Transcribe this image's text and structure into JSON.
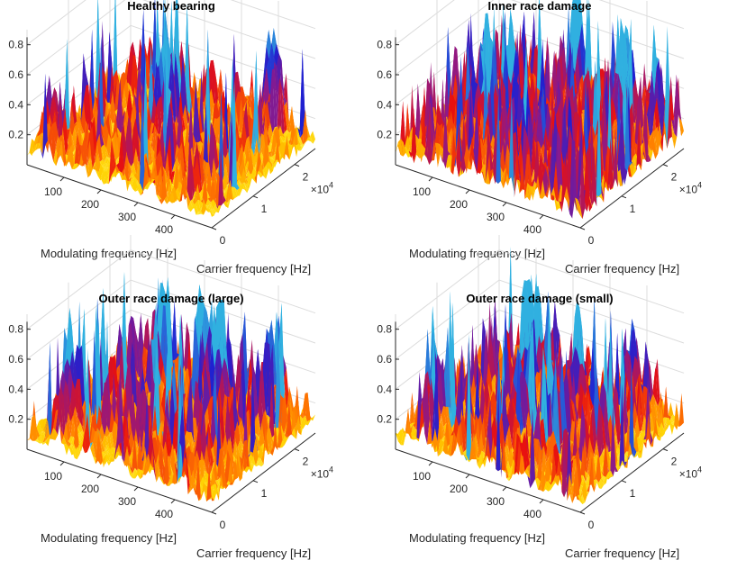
{
  "figure": {
    "layout": "2x2 grid of 3-D surface plots",
    "background": "#ffffff"
  },
  "chart_data": [
    {
      "type": "surface3d",
      "title": "Healthy bearing",
      "xlabel": "Modulating frequency [Hz]",
      "ylabel": "Carrier frequency [Hz]",
      "zlabel": "",
      "x_ticks": [
        "100",
        "200",
        "300",
        "400"
      ],
      "y_ticks": [
        "0",
        "1",
        "2"
      ],
      "y_exponent": "×10",
      "y_exponent_power": "4",
      "z_ticks": [
        "0.2",
        "0.4",
        "0.6",
        "0.8"
      ],
      "xlim": [
        0,
        500
      ],
      "ylim": [
        0,
        25000
      ],
      "zlim": [
        0,
        0.9
      ],
      "grid": true,
      "colormap": [
        "#ffff66",
        "#ffd000",
        "#ff7a00",
        "#e81010",
        "#8a1a8c",
        "#2020d0",
        "#30b0e0"
      ],
      "seed": 11,
      "noise_level": 0.14,
      "ridges_x": [
        60,
        150,
        240,
        330,
        420
      ],
      "ridge_strength": 0.35,
      "hotspots": [
        {
          "x": 230,
          "y": 12000,
          "z": 0.7
        },
        {
          "x": 400,
          "y": 23500,
          "z": 0.75
        },
        {
          "x": 30,
          "y": 3000,
          "z": 0.45
        },
        {
          "x": 200,
          "y": 16000,
          "z": 0.5
        }
      ]
    },
    {
      "type": "surface3d",
      "title": "Inner race damage",
      "xlabel": "Modulating frequency [Hz]",
      "ylabel": "Carrier frequency [Hz]",
      "zlabel": "",
      "x_ticks": [
        "100",
        "200",
        "300",
        "400"
      ],
      "y_ticks": [
        "0",
        "1",
        "2"
      ],
      "y_exponent": "×10",
      "y_exponent_power": "4",
      "z_ticks": [
        "0.2",
        "0.4",
        "0.6",
        "0.8"
      ],
      "xlim": [
        0,
        500
      ],
      "ylim": [
        0,
        25000
      ],
      "zlim": [
        0,
        0.9
      ],
      "grid": true,
      "colormap": [
        "#ffff66",
        "#ffd000",
        "#ff7a00",
        "#e81010",
        "#8a1a8c",
        "#2020d0",
        "#30b0e0"
      ],
      "seed": 23,
      "noise_level": 0.26,
      "ridges_x": [
        100,
        200,
        300,
        400
      ],
      "ridge_strength": 0.3,
      "hotspots": [
        {
          "x": 130,
          "y": 10000,
          "z": 0.85
        },
        {
          "x": 170,
          "y": 13000,
          "z": 0.75
        },
        {
          "x": 240,
          "y": 22500,
          "z": 0.9
        },
        {
          "x": 390,
          "y": 20000,
          "z": 0.7
        },
        {
          "x": 330,
          "y": 6000,
          "z": 0.6
        },
        {
          "x": 460,
          "y": 22000,
          "z": 0.55
        },
        {
          "x": 250,
          "y": 7000,
          "z": 0.55
        }
      ]
    },
    {
      "type": "surface3d",
      "title": "Outer race damage (large)",
      "xlabel": "Modulating frequency [Hz]",
      "ylabel": "Carrier frequency [Hz]",
      "zlabel": "",
      "x_ticks": [
        "100",
        "200",
        "300",
        "400"
      ],
      "y_ticks": [
        "0",
        "1",
        "2"
      ],
      "y_exponent": "×10",
      "y_exponent_power": "4",
      "z_ticks": [
        "0.2",
        "0.4",
        "0.6",
        "0.8"
      ],
      "xlim": [
        0,
        500
      ],
      "ylim": [
        0,
        25000
      ],
      "zlim": [
        0,
        0.9
      ],
      "grid": true,
      "colormap": [
        "#ffff66",
        "#ffd000",
        "#ff7a00",
        "#e81010",
        "#8a1a8c",
        "#2020d0",
        "#30b0e0"
      ],
      "seed": 37,
      "noise_level": 0.15,
      "ridges_x": [
        75,
        160,
        245,
        330,
        415
      ],
      "ridge_strength": 0.45,
      "hotspots": [
        {
          "x": 150,
          "y": 19000,
          "z": 0.7
        },
        {
          "x": 260,
          "y": 20500,
          "z": 0.65
        },
        {
          "x": 330,
          "y": 17000,
          "z": 0.7
        },
        {
          "x": 60,
          "y": 5000,
          "z": 0.6
        },
        {
          "x": 400,
          "y": 23000,
          "z": 0.65
        }
      ]
    },
    {
      "type": "surface3d",
      "title": "Outer race damage (small)",
      "xlabel": "Modulating frequency [Hz]",
      "ylabel": "Carrier frequency [Hz]",
      "zlabel": "",
      "x_ticks": [
        "100",
        "200",
        "300",
        "400"
      ],
      "y_ticks": [
        "0",
        "1",
        "2"
      ],
      "y_exponent": "×10",
      "y_exponent_power": "4",
      "z_ticks": [
        "0.2",
        "0.4",
        "0.6",
        "0.8"
      ],
      "xlim": [
        0,
        500
      ],
      "ylim": [
        0,
        25000
      ],
      "zlim": [
        0,
        0.9
      ],
      "grid": true,
      "colormap": [
        "#ffff66",
        "#ffd000",
        "#ff7a00",
        "#e81010",
        "#8a1a8c",
        "#2020d0",
        "#30b0e0"
      ],
      "seed": 53,
      "noise_level": 0.15,
      "ridges_x": [
        70,
        160,
        250,
        340,
        430
      ],
      "ridge_strength": 0.45,
      "hotspots": [
        {
          "x": 160,
          "y": 18000,
          "z": 0.75
        },
        {
          "x": 300,
          "y": 17000,
          "z": 0.8
        },
        {
          "x": 45,
          "y": 5000,
          "z": 0.65
        },
        {
          "x": 380,
          "y": 23000,
          "z": 0.6
        },
        {
          "x": 230,
          "y": 9000,
          "z": 0.6
        }
      ]
    }
  ]
}
